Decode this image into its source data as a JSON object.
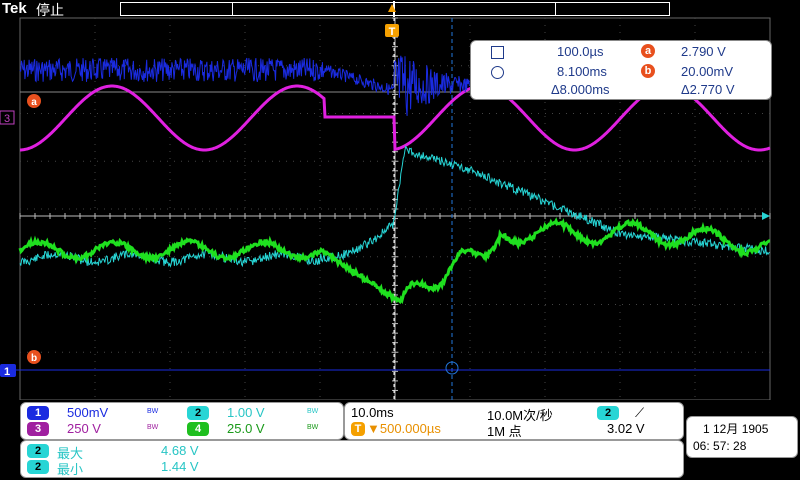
{
  "header": {
    "brand": "Tek",
    "status": "停止",
    "trigger_marker": "T"
  },
  "cursor_readout": {
    "row1_time": "100.0µs",
    "row1_badge": "a",
    "row1_value": "2.790 V",
    "row2_time": "8.100ms",
    "row2_badge": "b",
    "row2_value": "20.00mV",
    "row3_delta_time": "Δ8.000ms",
    "row3_delta_value": "Δ2.770 V"
  },
  "markers": {
    "ch3": "3",
    "ch1": "1",
    "cursor_a": "a",
    "cursor_b": "b"
  },
  "channels": [
    {
      "num": "1",
      "scale": "500mV",
      "bw": "BW",
      "color": "#1a2be0"
    },
    {
      "num": "2",
      "scale": "1.00 V",
      "bw": "BW",
      "color": "#27d5d5"
    },
    {
      "num": "3",
      "scale": "250 V",
      "bw": "BW",
      "color": "#a020a0"
    },
    {
      "num": "4",
      "scale": "25.0 V",
      "bw": "BW",
      "color": "#1fbf1f"
    }
  ],
  "timebase": {
    "scale": "10.0ms",
    "trigger_pos": "▼500.000µs",
    "sample_rate": "10.0M次/秒",
    "record_length": "1M 点",
    "trig_channel": "2",
    "trig_slope": "⟋",
    "trig_level": "3.02 V"
  },
  "datetime": {
    "date": "1 12月  1905",
    "time": "06: 57: 28"
  },
  "measurements": [
    {
      "channel": "2",
      "label": "最大",
      "value": "4.68 V"
    },
    {
      "channel": "2",
      "label": "最小",
      "value": "1.44 V"
    }
  ],
  "colors": {
    "ch1": "#1a2be0",
    "ch2": "#27d5d5",
    "ch3": "#e020e0",
    "ch4": "#1fe01f",
    "cursor": "#e8501e"
  }
}
